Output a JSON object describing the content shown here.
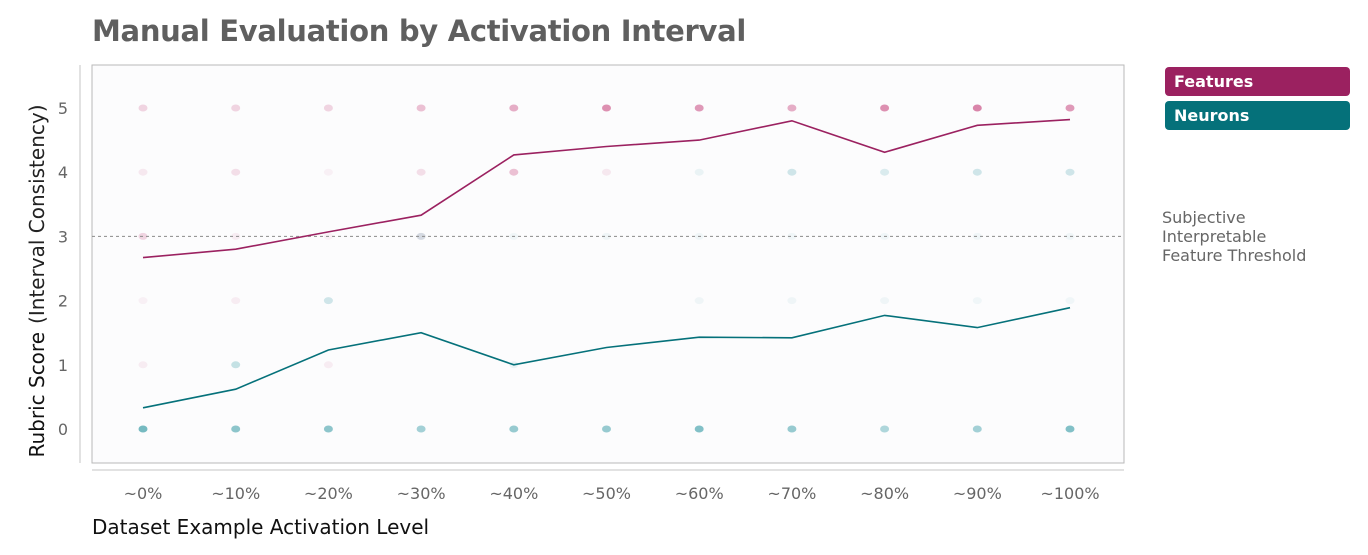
{
  "chart_data": {
    "type": "line",
    "title": "Manual Evaluation by Activation Interval",
    "xlabel": "Dataset Example Activation Level",
    "ylabel": "Rubric Score",
    "ylabel_sub": "(Interval Consistency)",
    "categories": [
      "~0%",
      "~10%",
      "~20%",
      "~30%",
      "~40%",
      "~50%",
      "~60%",
      "~70%",
      "~80%",
      "~90%",
      "~100%"
    ],
    "yticks": [
      0,
      1,
      2,
      3,
      4,
      5
    ],
    "ylim": [
      -0.5,
      5.6
    ],
    "grid": false,
    "legend_position": "top-right",
    "series": [
      {
        "name": "Features",
        "color": "#9b2160",
        "dot_color": "#c23673",
        "values": [
          2.67,
          2.8,
          3.07,
          3.33,
          4.27,
          4.4,
          4.5,
          4.8,
          4.31,
          4.73,
          4.82
        ],
        "scores": {
          "5": [
            0.2,
            0.2,
            0.2,
            0.3,
            0.4,
            0.55,
            0.5,
            0.4,
            0.55,
            0.6,
            0.5
          ],
          "4": [
            0.1,
            0.15,
            0.06,
            0.15,
            0.3,
            0.1,
            0,
            0,
            0,
            0,
            0
          ],
          "3": [
            0.2,
            0.08,
            0.05,
            0.1,
            0,
            0,
            0,
            0,
            0,
            0,
            0
          ],
          "2": [
            0.06,
            0.08,
            0,
            0,
            0,
            0,
            0,
            0,
            0,
            0,
            0
          ],
          "1": [
            0.08,
            0,
            0.08,
            0,
            0,
            0,
            0,
            0,
            0,
            0,
            0
          ]
        }
      },
      {
        "name": "Neurons",
        "color": "#05717a",
        "dot_color": "#1d8e9a",
        "values": [
          0.33,
          0.62,
          1.23,
          1.5,
          1.0,
          1.27,
          1.43,
          1.42,
          1.77,
          1.58,
          1.89
        ],
        "scores": {
          "0": [
            0.6,
            0.5,
            0.5,
            0.4,
            0.45,
            0.45,
            0.55,
            0.45,
            0.35,
            0.4,
            0.55
          ],
          "1": [
            0,
            0.25,
            0,
            0,
            0.08,
            0,
            0,
            0,
            0,
            0,
            0
          ],
          "2": [
            0,
            0,
            0.2,
            0,
            0,
            0,
            0.06,
            0.06,
            0.06,
            0.05,
            0.05
          ],
          "3": [
            0,
            0,
            0,
            0.15,
            0.05,
            0.06,
            0.05,
            0.05,
            0.05,
            0.05,
            0.05
          ],
          "4": [
            0,
            0,
            0,
            0,
            0,
            0,
            0.08,
            0.2,
            0.15,
            0.2,
            0.2
          ]
        }
      }
    ],
    "threshold": {
      "value": 3,
      "label": "Subjective\nInterpretable\nFeature Threshold"
    }
  }
}
